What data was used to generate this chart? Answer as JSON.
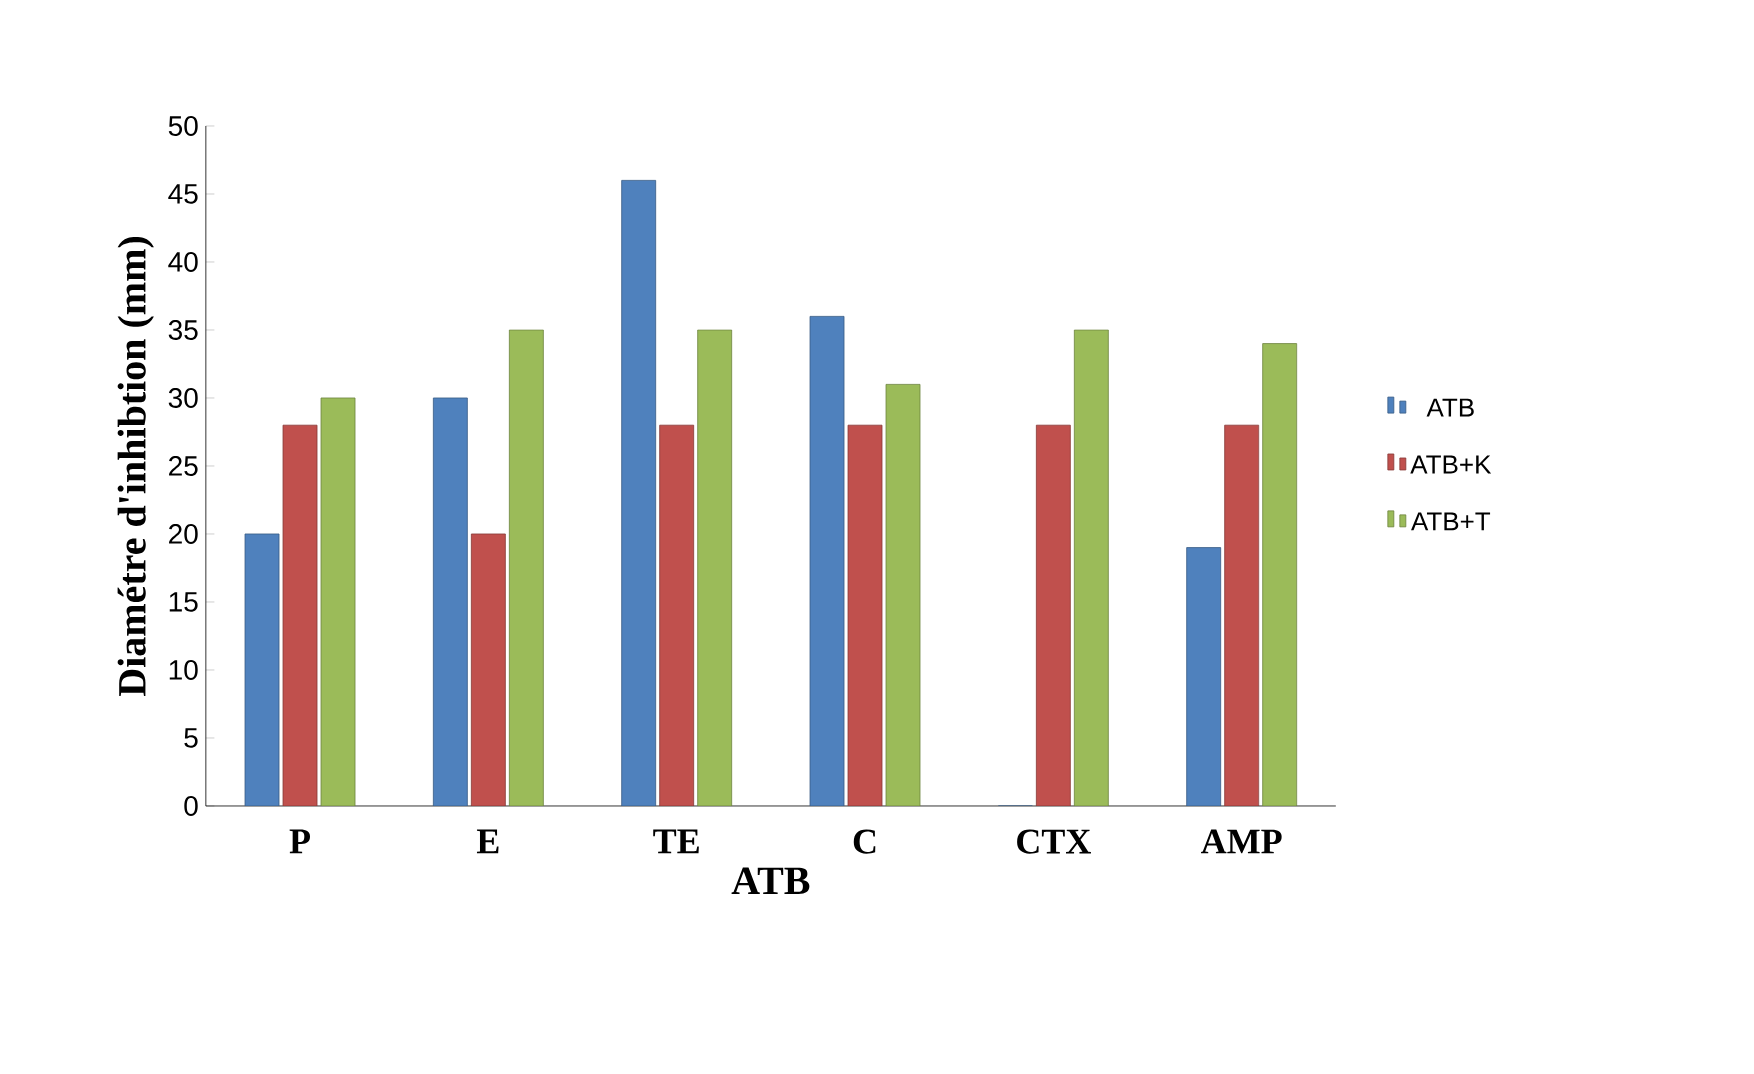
{
  "chart_data": {
    "type": "bar",
    "xlabel": "ATB",
    "ylabel": "Diamétre d'inhibtion (mm)",
    "categories": [
      "P",
      "E",
      "TE",
      "C",
      "CTX",
      "AMP"
    ],
    "series": [
      {
        "name": "ATB",
        "color": "#4f81bd",
        "values": [
          20,
          30,
          46,
          36,
          0,
          19
        ]
      },
      {
        "name": "ATB+K",
        "color": "#c0504d",
        "values": [
          28,
          20,
          28,
          28,
          28,
          28
        ]
      },
      {
        "name": "ATB+T",
        "color": "#9bbb59",
        "values": [
          30,
          35,
          35,
          31,
          35,
          34
        ]
      }
    ],
    "ylim": [
      0,
      50
    ],
    "yticks": [
      0,
      5,
      10,
      15,
      20,
      25,
      30,
      35,
      40,
      45,
      50
    ],
    "grid": false,
    "legend": "right"
  }
}
